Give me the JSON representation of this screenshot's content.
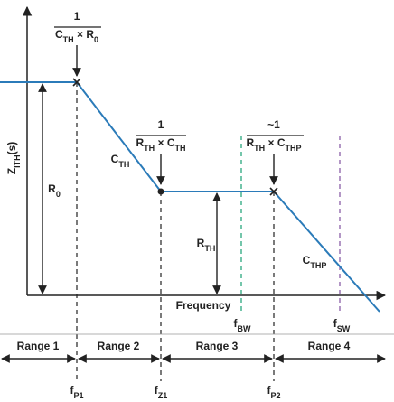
{
  "y_axis_label": [
    "Z",
    "ITH",
    "(s)"
  ],
  "x_axis_label": "Frequency",
  "annotations": [
    {
      "numerator": "1",
      "denominator": [
        "C",
        "TH",
        " × R",
        "0"
      ]
    },
    {
      "numerator": "1",
      "denominator": [
        "R",
        "TH",
        " × C",
        "TH"
      ]
    },
    {
      "numerator": "~1",
      "denominator": [
        "R",
        "TH",
        " × C",
        "THP"
      ]
    }
  ],
  "curve_labels": [
    [
      "C",
      "TH"
    ],
    [
      "C",
      "THP"
    ]
  ],
  "magnitude_labels": [
    [
      "R",
      "0"
    ],
    [
      "R",
      "TH"
    ]
  ],
  "marker_labels": [
    [
      "f",
      "BW"
    ],
    [
      "f",
      "SW"
    ]
  ],
  "ranges": [
    "Range 1",
    "Range 2",
    "Range 3",
    "Range 4"
  ],
  "frequencies": [
    [
      "f",
      "P1"
    ],
    [
      "f",
      "Z1"
    ],
    [
      "f",
      "P2"
    ]
  ]
}
